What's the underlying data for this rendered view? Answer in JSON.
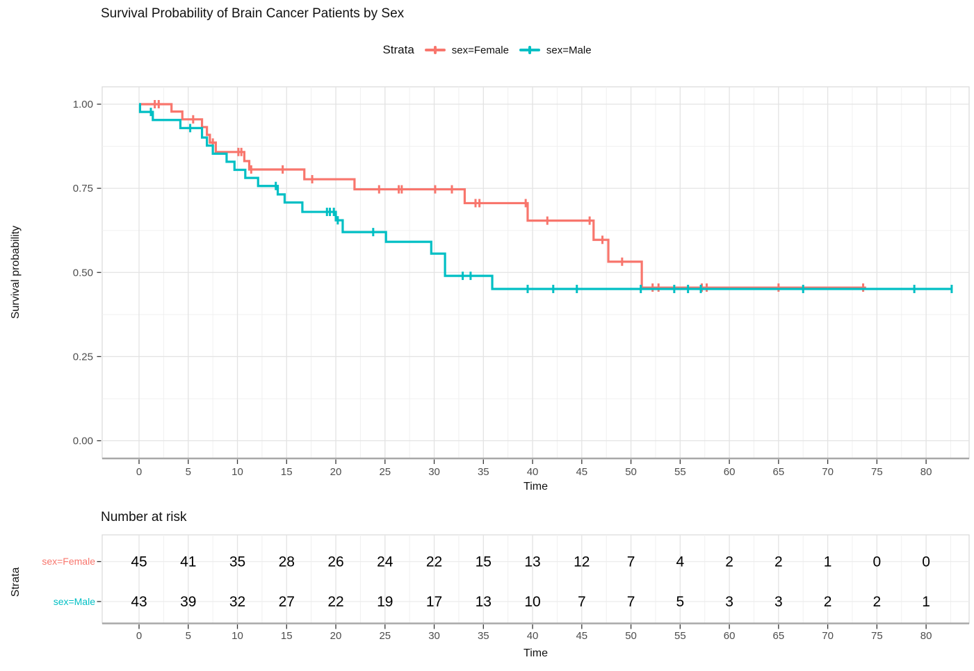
{
  "title": "Survival Probability of Brain Cancer Patients by Sex",
  "legend": {
    "title": "Strata",
    "items": [
      {
        "label": "sex=Female",
        "color": "#F8766D"
      },
      {
        "label": "sex=Male",
        "color": "#00BFC4"
      }
    ]
  },
  "axes": {
    "x": {
      "title": "Time",
      "tick_values": [
        0,
        5,
        10,
        15,
        20,
        25,
        30,
        35,
        40,
        45,
        50,
        55,
        60,
        65,
        70,
        75,
        80
      ],
      "minor_step": 2.5,
      "range": [
        0,
        84
      ]
    },
    "y": {
      "title": "Survival probability",
      "tick_values": [
        0,
        0.25,
        0.5,
        0.75,
        1.0
      ],
      "tick_labels": [
        "0.00",
        "0.25",
        "0.50",
        "0.75",
        "1.00"
      ],
      "minor_values": [
        0.125,
        0.375,
        0.625,
        0.875
      ],
      "range": [
        0,
        1.05
      ]
    }
  },
  "chart_data": {
    "type": "line",
    "subtype": "kaplan-meier-step",
    "title": "Survival Probability of Brain Cancer Patients by Sex",
    "xlabel": "Time",
    "ylabel": "Survival probability",
    "xlim": [
      0,
      84
    ],
    "ylim": [
      0,
      1.05
    ],
    "grid": true,
    "legend_position": "top",
    "series": [
      {
        "name": "sex=Female",
        "color": "#F8766D",
        "steps": [
          [
            0,
            1.0
          ],
          [
            3.3,
            0.978
          ],
          [
            4.4,
            0.955
          ],
          [
            6.4,
            0.932
          ],
          [
            6.9,
            0.909
          ],
          [
            7.2,
            0.886
          ],
          [
            7.8,
            0.858
          ],
          [
            10.7,
            0.831
          ],
          [
            11.2,
            0.806
          ],
          [
            16.8,
            0.777
          ],
          [
            21.9,
            0.747
          ],
          [
            33.1,
            0.706
          ],
          [
            39.5,
            0.654
          ],
          [
            46.2,
            0.597
          ],
          [
            47.7,
            0.532
          ],
          [
            51.1,
            0.455
          ]
        ],
        "end_time": 73.9,
        "censor_times": [
          1.6,
          2.0,
          5.5,
          7.5,
          10.1,
          10.4,
          11.4,
          14.6,
          17.6,
          24.4,
          26.4,
          26.7,
          30.1,
          31.8,
          34.2,
          34.6,
          39.3,
          41.5,
          45.8,
          47.1,
          49.1,
          52.2,
          52.8,
          57.2,
          57.7,
          65.0,
          73.6
        ]
      },
      {
        "name": "sex=Male",
        "color": "#00BFC4",
        "steps": [
          [
            0,
            1.0
          ],
          [
            0.1,
            0.977
          ],
          [
            1.4,
            0.953
          ],
          [
            4.2,
            0.929
          ],
          [
            6.4,
            0.901
          ],
          [
            6.9,
            0.877
          ],
          [
            7.5,
            0.853
          ],
          [
            8.9,
            0.829
          ],
          [
            9.7,
            0.805
          ],
          [
            10.8,
            0.781
          ],
          [
            12.1,
            0.757
          ],
          [
            14.1,
            0.732
          ],
          [
            14.8,
            0.708
          ],
          [
            16.6,
            0.68
          ],
          [
            20.0,
            0.655
          ],
          [
            20.7,
            0.62
          ],
          [
            25.1,
            0.591
          ],
          [
            29.7,
            0.556
          ],
          [
            31.1,
            0.49
          ],
          [
            35.9,
            0.451
          ]
        ],
        "end_time": 82.6,
        "censor_times": [
          1.2,
          5.2,
          13.9,
          19.1,
          19.4,
          19.8,
          20.2,
          23.8,
          32.9,
          33.7,
          39.5,
          42.1,
          44.5,
          51.0,
          54.4,
          55.8,
          57.1,
          67.5,
          78.8,
          82.6
        ]
      }
    ]
  },
  "risk_table": {
    "title": "Number at risk",
    "strata_label": "Strata",
    "axis_title": "Time",
    "time_points": [
      0,
      5,
      10,
      15,
      20,
      25,
      30,
      35,
      40,
      45,
      50,
      55,
      60,
      65,
      70,
      75,
      80
    ],
    "rows": [
      {
        "label": "sex=Female",
        "color": "#F8766D",
        "values": [
          45,
          41,
          35,
          28,
          26,
          24,
          22,
          15,
          13,
          12,
          7,
          4,
          2,
          2,
          1,
          0,
          0
        ]
      },
      {
        "label": "sex=Male",
        "color": "#00BFC4",
        "values": [
          43,
          39,
          32,
          27,
          22,
          19,
          17,
          13,
          10,
          7,
          7,
          5,
          3,
          3,
          2,
          2,
          1
        ]
      }
    ]
  },
  "style_colors": {
    "grid_major": "#E3E3E3",
    "grid_minor": "#F0F0F0",
    "panel_border": "#D9D9D9",
    "axis_line": "#A8A8A8",
    "tick_mark": "#333333",
    "tick_text": "#4D4D4D"
  }
}
